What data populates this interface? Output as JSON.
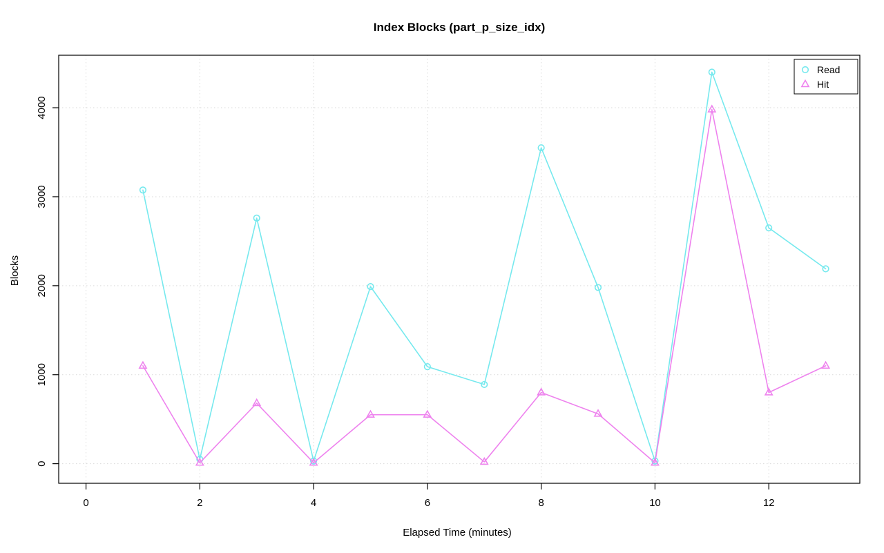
{
  "chart_data": {
    "type": "line",
    "title": "Index Blocks (part_p_size_idx)",
    "xlabel": "Elapsed Time (minutes)",
    "ylabel": "Blocks",
    "x": [
      1,
      2,
      3,
      4,
      5,
      6,
      7,
      8,
      9,
      10,
      11,
      12,
      13
    ],
    "series": [
      {
        "name": "Read",
        "marker": "circle",
        "color": "#76E9EE",
        "values": [
          3075,
          50,
          2760,
          30,
          1990,
          1090,
          890,
          3550,
          1980,
          30,
          4400,
          2650,
          2190
        ]
      },
      {
        "name": "Hit",
        "marker": "triangle",
        "color": "#EE82EE",
        "values": [
          1100,
          10,
          680,
          10,
          550,
          550,
          20,
          800,
          560,
          10,
          3980,
          800,
          1100
        ]
      }
    ],
    "x_ticks": [
      0,
      2,
      4,
      6,
      8,
      10,
      12
    ],
    "y_ticks": [
      0,
      1000,
      2000,
      3000,
      4000
    ],
    "xlim": [
      -0.48,
      13.6
    ],
    "ylim": [
      -220,
      4590
    ],
    "grid": true,
    "grid_color": "#d9d9d9",
    "axis_color": "#000000",
    "legend_position": "top-right"
  }
}
